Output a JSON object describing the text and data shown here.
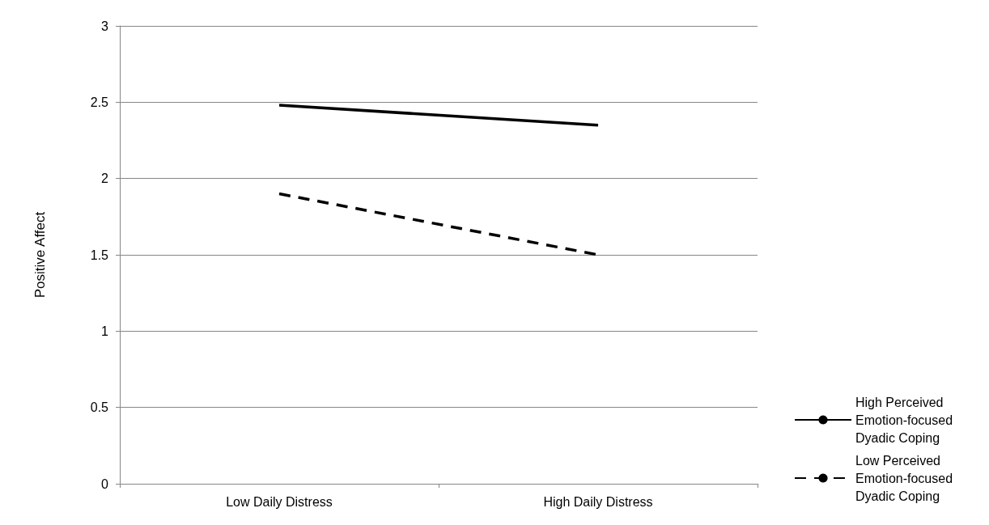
{
  "chart_data": {
    "type": "line",
    "ylabel": "Positive Affect",
    "categories": [
      "Low Daily Distress",
      "High Daily Distress"
    ],
    "series": [
      {
        "name": "High Perceived Emotion-focused Dyadic Coping",
        "color": "#000000",
        "values": [
          2.48,
          2.35
        ],
        "line_style": "solid"
      },
      {
        "name": "Low Perceived Emotion-focused Dyadic Coping",
        "color": "#000000",
        "values": [
          1.9,
          1.5
        ],
        "line_style": "dashed"
      }
    ],
    "ylim": [
      0,
      3
    ],
    "yticks": [
      0,
      0.5,
      1,
      1.5,
      2,
      2.5,
      3
    ],
    "grid": "y",
    "legend": "right",
    "marker": "none"
  }
}
